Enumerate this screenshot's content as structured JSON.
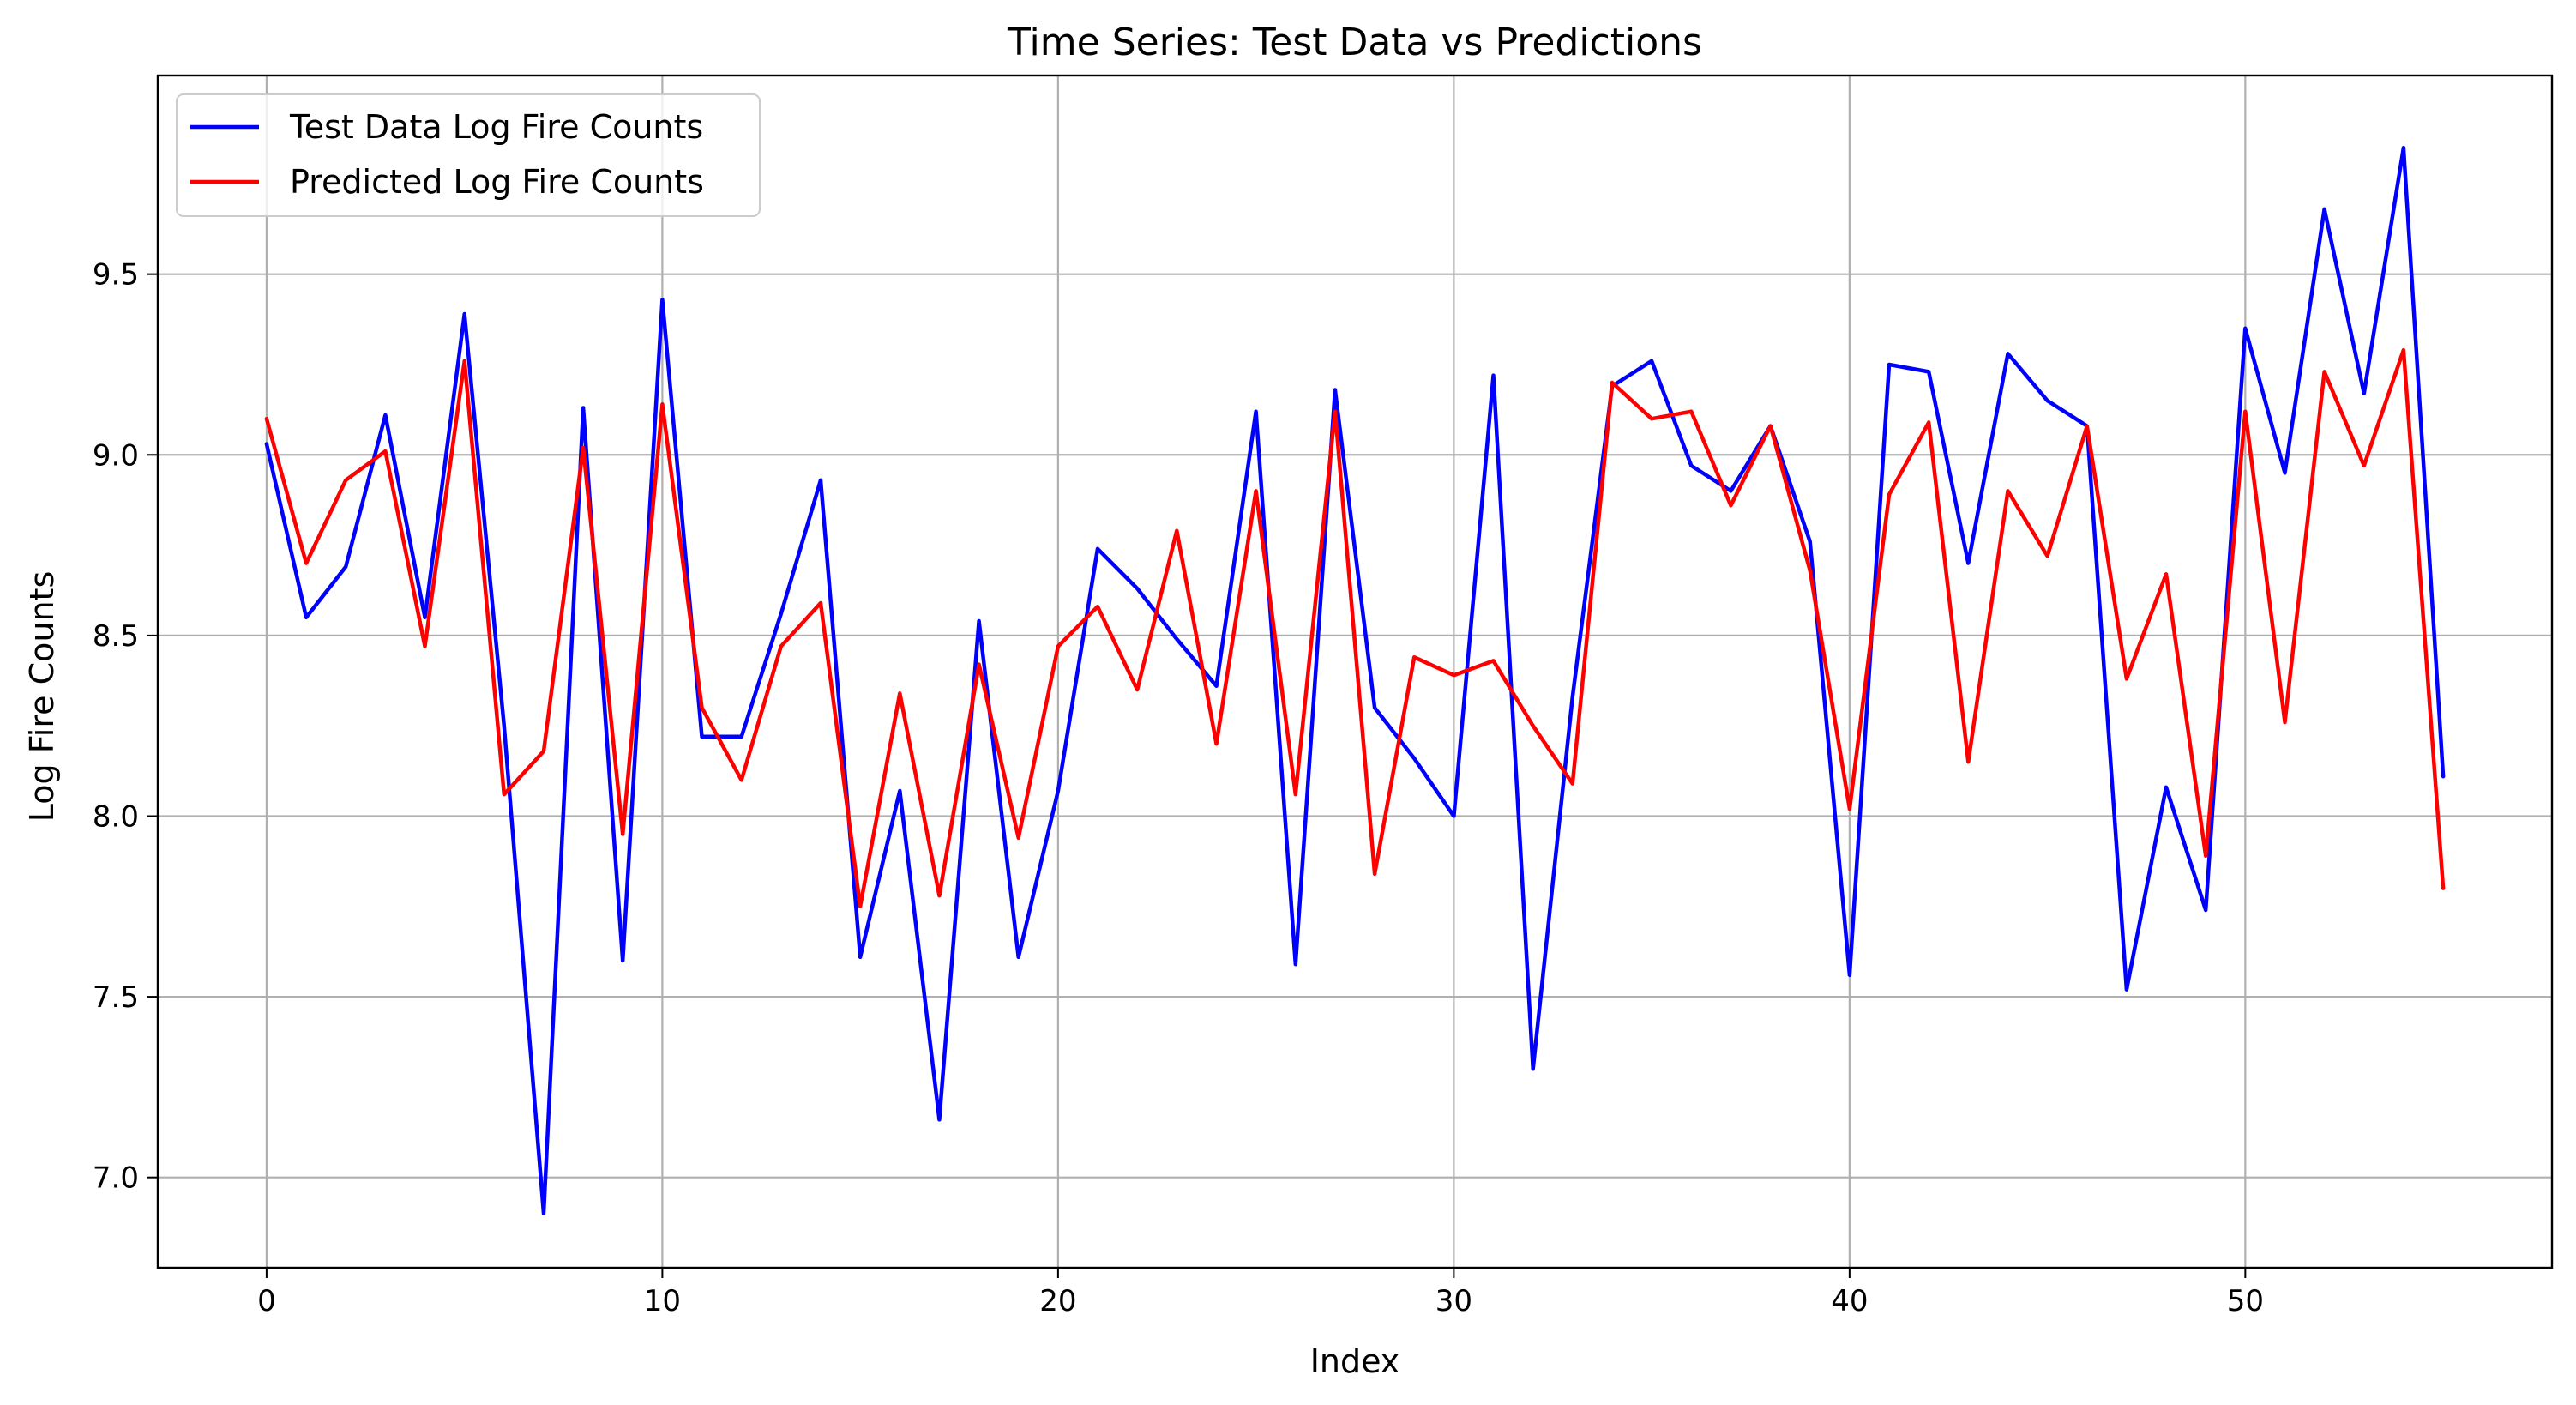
{
  "chart_data": {
    "type": "line",
    "title": "Time Series: Test Data vs Predictions",
    "xlabel": "Index",
    "ylabel": "Log Fire Counts",
    "xlim": [
      -2.75,
      57.75
    ],
    "ylim": [
      6.75,
      10.05
    ],
    "xticks": [
      0,
      10,
      20,
      30,
      40,
      50
    ],
    "xtick_labels": [
      "0",
      "10",
      "20",
      "30",
      "40",
      "50"
    ],
    "yticks": [
      7.0,
      7.5,
      8.0,
      8.5,
      9.0,
      9.5
    ],
    "ytick_labels": [
      "7.0",
      "7.5",
      "8.0",
      "8.5",
      "9.0",
      "9.5"
    ],
    "grid": true,
    "legend_position": "upper-left",
    "x": [
      0,
      1,
      2,
      3,
      4,
      5,
      6,
      7,
      8,
      9,
      10,
      11,
      12,
      13,
      14,
      15,
      16,
      17,
      18,
      19,
      20,
      21,
      22,
      23,
      24,
      25,
      26,
      27,
      28,
      29,
      30,
      31,
      32,
      33,
      34,
      35,
      36,
      37,
      38,
      39,
      40,
      41,
      42,
      43,
      44,
      45,
      46,
      47,
      48,
      49,
      50,
      51,
      52,
      53,
      54,
      55
    ],
    "series": [
      {
        "name": "Test Data Log Fire Counts",
        "color": "#0000ff",
        "values": [
          9.03,
          8.55,
          8.69,
          9.11,
          8.55,
          9.39,
          8.25,
          6.9,
          9.13,
          7.6,
          9.43,
          8.22,
          8.22,
          8.56,
          8.93,
          7.61,
          8.07,
          7.16,
          8.54,
          7.61,
          8.07,
          8.74,
          8.63,
          8.49,
          8.36,
          9.12,
          7.59,
          9.18,
          8.3,
          8.16,
          8.0,
          9.22,
          7.3,
          8.33,
          9.19,
          9.26,
          8.97,
          8.9,
          9.08,
          8.76,
          7.56,
          9.25,
          9.23,
          8.7,
          9.28,
          9.15,
          9.08,
          7.52,
          8.08,
          7.74,
          9.35,
          8.95,
          9.68,
          9.17,
          9.85,
          8.11
        ]
      },
      {
        "name": "Predicted Log Fire Counts",
        "color": "#ff0000",
        "values": [
          9.1,
          8.7,
          8.93,
          9.01,
          8.47,
          9.26,
          8.06,
          8.18,
          9.02,
          7.95,
          9.14,
          8.3,
          8.1,
          8.47,
          8.59,
          7.75,
          8.34,
          7.78,
          8.42,
          7.94,
          8.47,
          8.58,
          8.35,
          8.79,
          8.2,
          8.9,
          8.06,
          9.12,
          7.84,
          8.44,
          8.39,
          8.43,
          8.25,
          8.09,
          9.2,
          9.1,
          9.12,
          8.86,
          9.08,
          8.68,
          8.02,
          8.89,
          9.09,
          8.15,
          8.9,
          8.72,
          9.08,
          8.38,
          8.67,
          7.89,
          9.12,
          8.26,
          9.23,
          8.97,
          9.29,
          7.8
        ]
      }
    ]
  }
}
